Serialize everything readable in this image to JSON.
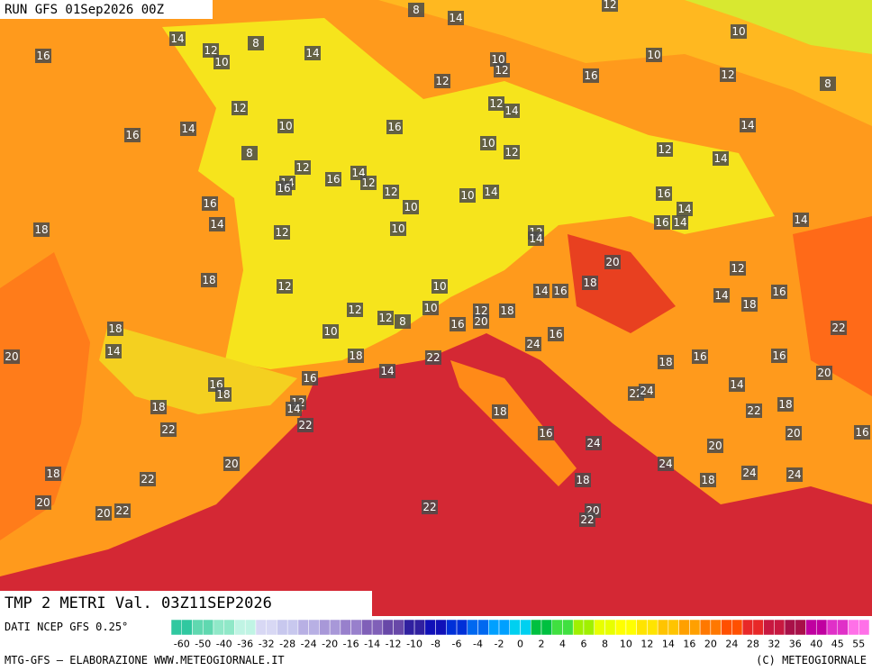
{
  "header": {
    "run": "RUN GFS 01Sep2026 00Z",
    "field": "TMP 2 METRI Val. 03Z11SEP2026"
  },
  "map_labels": [
    8,
    14,
    12,
    14,
    8,
    12,
    10,
    14,
    16,
    10,
    12,
    10,
    10,
    12,
    16,
    12,
    8,
    12,
    12,
    14,
    14,
    16,
    10,
    16,
    14,
    8,
    10,
    12,
    12,
    14,
    12,
    14,
    16,
    12,
    14,
    16,
    12,
    10,
    14,
    16,
    16,
    10,
    14,
    14,
    16,
    14,
    14,
    18,
    12,
    10,
    12,
    14,
    20,
    12,
    18,
    12,
    10,
    14,
    16,
    18,
    14,
    16,
    18,
    12,
    12,
    8,
    10,
    12,
    20,
    18,
    16,
    22,
    18,
    10,
    14,
    24,
    16,
    20,
    18,
    22,
    16,
    16,
    18,
    14,
    20,
    16,
    16,
    18,
    14,
    22,
    24,
    12,
    14,
    18,
    18,
    22,
    18,
    22,
    22,
    16,
    20,
    24,
    16,
    20,
    20,
    24,
    18,
    22,
    24,
    24,
    18,
    18,
    20,
    22,
    20,
    22,
    20,
    22
  ],
  "colorbar": {
    "ticks": [
      -60,
      -50,
      -40,
      -36,
      -32,
      -28,
      -24,
      -20,
      -16,
      -14,
      -12,
      -10,
      -8,
      -6,
      -4,
      -2,
      0,
      2,
      4,
      6,
      8,
      10,
      12,
      14,
      16,
      20,
      24,
      28,
      32,
      36,
      40,
      45,
      55
    ],
    "colors": [
      "#30c8a0",
      "#60d8b0",
      "#90e8c8",
      "#c0f4e4",
      "#d8d8f4",
      "#c8c8ee",
      "#b8b0e4",
      "#a898d8",
      "#9880cc",
      "#8060b8",
      "#6848a8",
      "#3020a0",
      "#1010b8",
      "#0030d8",
      "#0068f0",
      "#00a0ff",
      "#00d0f0",
      "#00c040",
      "#40e040",
      "#a0f000",
      "#e8ff00",
      "#ffff00",
      "#ffe400",
      "#ffc400",
      "#ffa000",
      "#ff7800",
      "#ff5000",
      "#e82828",
      "#c81840",
      "#a81048",
      "#c000a0",
      "#e030c8",
      "#ff70e8"
    ]
  },
  "footer": {
    "source": "DATI NCEP GFS 0.25°",
    "credit": "MTG-GFS — ELABORAZIONE WWW.METEOGIORNALE.IT",
    "copyright": "(C) METEOGIORNALE"
  }
}
